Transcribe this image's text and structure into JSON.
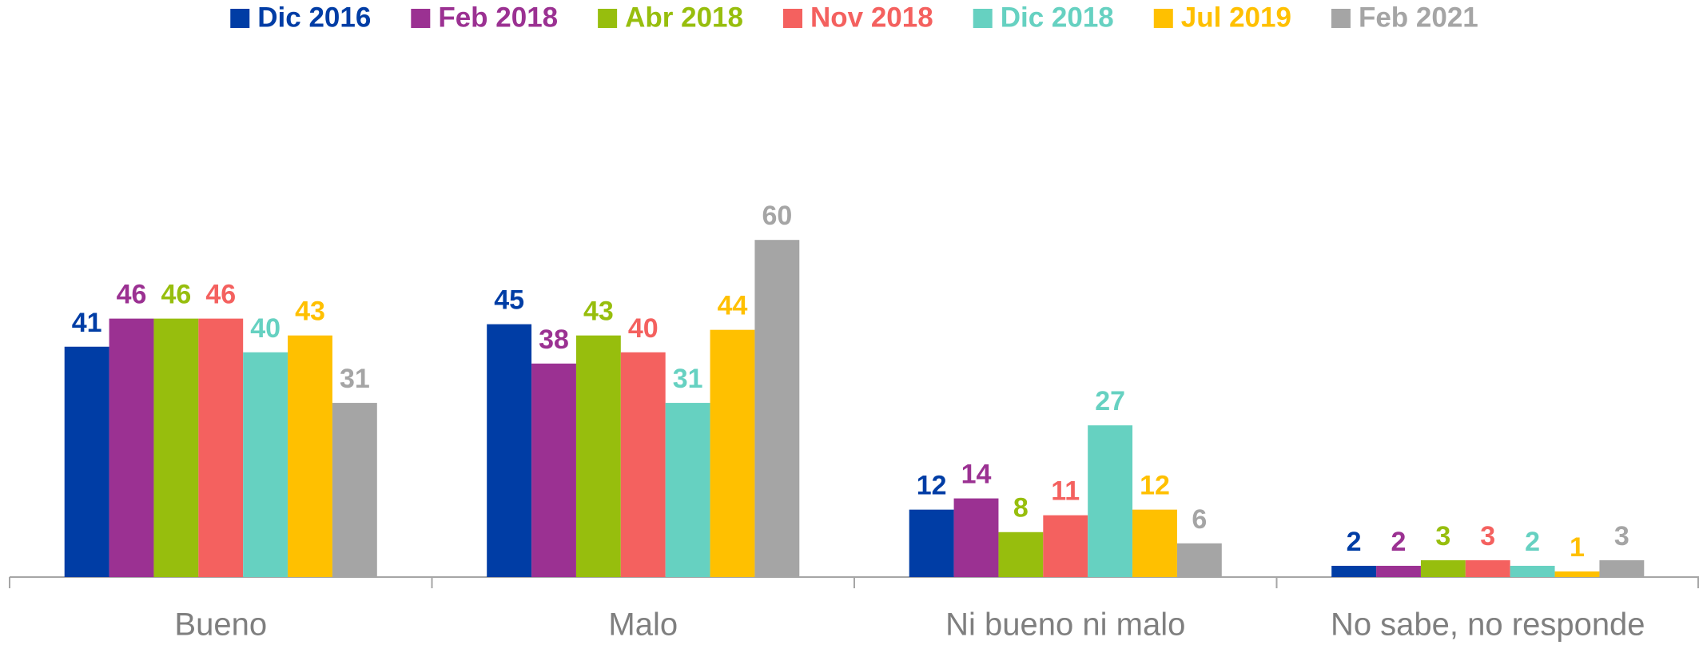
{
  "chart_data": {
    "type": "bar",
    "categories": [
      "Bueno",
      "Malo",
      "Ni bueno ni malo",
      "No sabe, no responde"
    ],
    "series": [
      {
        "name": "Dic 2016",
        "color": "#003DA5",
        "values": [
          41,
          45,
          12,
          2
        ]
      },
      {
        "name": "Feb 2018",
        "color": "#9B3192",
        "values": [
          46,
          38,
          14,
          2
        ]
      },
      {
        "name": "Abr 2018",
        "color": "#97BE0D",
        "values": [
          46,
          43,
          8,
          3
        ]
      },
      {
        "name": "Nov 2018",
        "color": "#F4615F",
        "values": [
          46,
          40,
          11,
          3
        ]
      },
      {
        "name": "Dic 2018",
        "color": "#66D1C1",
        "values": [
          40,
          31,
          27,
          2
        ]
      },
      {
        "name": "Jul 2019",
        "color": "#FFC000",
        "values": [
          43,
          44,
          12,
          1
        ]
      },
      {
        "name": "Feb 2021",
        "color": "#A5A5A5",
        "values": [
          31,
          60,
          6,
          3
        ]
      }
    ],
    "ylim": [
      0,
      100
    ],
    "legend": "top"
  }
}
